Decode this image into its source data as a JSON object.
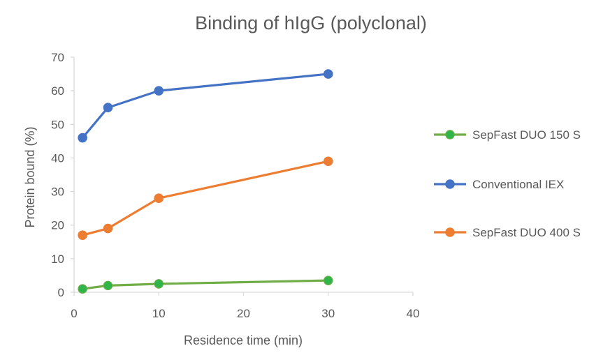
{
  "chart_data": {
    "type": "line",
    "title": "Binding of hIgG (polyclonal)",
    "xlabel": "Residence time (min)",
    "ylabel": "Protein bound (%)",
    "xlim": [
      0,
      40
    ],
    "ylim": [
      0,
      70
    ],
    "xticks": [
      0,
      10,
      20,
      30,
      40
    ],
    "yticks": [
      0,
      10,
      20,
      30,
      40,
      50,
      60,
      70
    ],
    "grid": false,
    "legend_position": "right",
    "series": [
      {
        "name": "SepFast DUO 150 S",
        "line_color": "#70ad47",
        "marker_color": "#2fb54a",
        "points": [
          {
            "x": 1,
            "y": 1
          },
          {
            "x": 4,
            "y": 2
          },
          {
            "x": 10,
            "y": 2.5
          },
          {
            "x": 30,
            "y": 3.5
          }
        ]
      },
      {
        "name": "Conventional IEX",
        "line_color": "#4472c4",
        "marker_color": "#4472c4",
        "points": [
          {
            "x": 1,
            "y": 46
          },
          {
            "x": 4,
            "y": 55
          },
          {
            "x": 10,
            "y": 60
          },
          {
            "x": 30,
            "y": 65
          }
        ]
      },
      {
        "name": "SepFast DUO 400 S",
        "line_color": "#ed7d31",
        "marker_color": "#ed7d31",
        "points": [
          {
            "x": 1,
            "y": 17
          },
          {
            "x": 4,
            "y": 19
          },
          {
            "x": 10,
            "y": 28
          },
          {
            "x": 30,
            "y": 39
          }
        ]
      }
    ]
  }
}
